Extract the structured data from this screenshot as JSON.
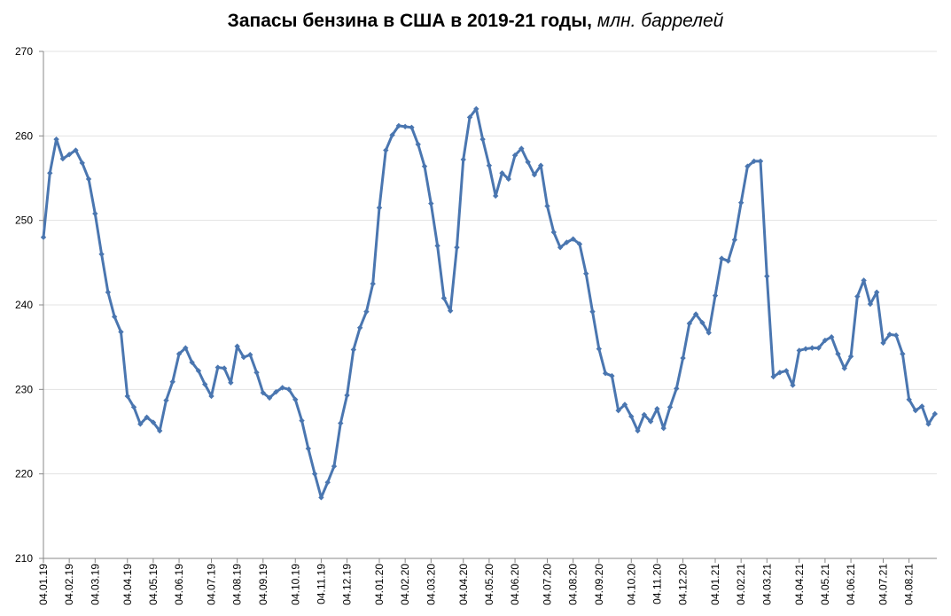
{
  "chart_data": {
    "type": "line",
    "title": "Запасы бензина в США в 2019-21 годы,",
    "title_unit": "млн. баррелей",
    "xlabel": "",
    "ylabel": "",
    "ylim": [
      210,
      270
    ],
    "yticks": [
      210,
      220,
      230,
      240,
      250,
      260,
      270
    ],
    "xtick_labels": [
      "04.01.19",
      "04.02.19",
      "04.03.19",
      "04.04.19",
      "04.05.19",
      "04.06.19",
      "04.07.19",
      "04.08.19",
      "04.09.19",
      "04.10.19",
      "04.11.19",
      "04.12.19",
      "04.01.20",
      "04.02.20",
      "04.03.20",
      "04.04.20",
      "04.05.20",
      "04.06.20",
      "04.07.20",
      "04.08.20",
      "04.09.20",
      "04.10.20",
      "04.11.20",
      "04.12.20",
      "04.01.21",
      "04.02.21",
      "04.03.21",
      "04.04.21",
      "04.05.21",
      "04.06.21",
      "04.07.21",
      "04.08.21"
    ],
    "xtick_index": [
      0,
      4,
      8,
      13,
      17,
      21,
      26,
      30,
      34,
      39,
      43,
      47,
      52,
      56,
      60,
      65,
      69,
      73,
      78,
      82,
      86,
      91,
      95,
      99,
      104,
      108,
      112,
      117,
      121,
      125,
      130,
      134
    ],
    "grid": true,
    "legend": "none",
    "color": "#4a76b0",
    "series": [
      {
        "values": [
          248.0,
          255.6,
          259.6,
          257.3,
          257.8,
          258.3,
          256.8,
          254.9,
          250.8,
          246.0,
          241.5,
          238.6,
          236.8,
          229.2,
          227.9,
          225.9,
          226.7,
          226.1,
          225.1,
          228.7,
          230.9,
          234.2,
          234.9,
          233.2,
          232.2,
          230.6,
          229.2,
          232.6,
          232.5,
          230.8,
          235.1,
          233.8,
          234.1,
          232.0,
          229.6,
          229.0,
          229.7,
          230.2,
          230.0,
          228.8,
          226.3,
          223.0,
          220.0,
          217.2,
          219.0,
          220.9,
          226.0,
          229.3,
          234.7,
          237.3,
          239.2,
          242.5,
          251.5,
          258.3,
          260.1,
          261.2,
          261.1,
          261.0,
          259.0,
          256.4,
          252.0,
          247.0,
          240.8,
          239.3,
          246.8,
          257.2,
          262.2,
          263.2,
          259.6,
          256.5,
          252.9,
          255.6,
          254.9,
          257.7,
          258.5,
          256.9,
          255.4,
          256.5,
          251.7,
          248.6,
          246.8,
          247.4,
          247.8,
          247.2,
          243.7,
          239.2,
          234.8,
          231.9,
          231.6,
          227.5,
          228.2,
          226.8,
          225.1,
          227.0,
          226.2,
          227.7,
          225.4,
          227.9,
          230.1,
          233.7,
          237.8,
          238.9,
          237.9,
          236.7,
          241.1,
          245.5,
          245.2,
          247.7,
          252.1,
          256.4,
          257.0,
          257.0,
          243.4,
          231.5,
          232.0,
          232.2,
          230.5,
          234.6,
          234.8,
          234.9,
          234.9,
          235.8,
          236.2,
          234.2,
          232.5,
          233.9,
          241.0,
          242.9,
          240.1,
          241.5,
          235.5,
          236.5,
          236.4,
          234.2,
          228.8,
          227.5,
          228.0,
          225.9,
          227.1
        ]
      }
    ]
  }
}
